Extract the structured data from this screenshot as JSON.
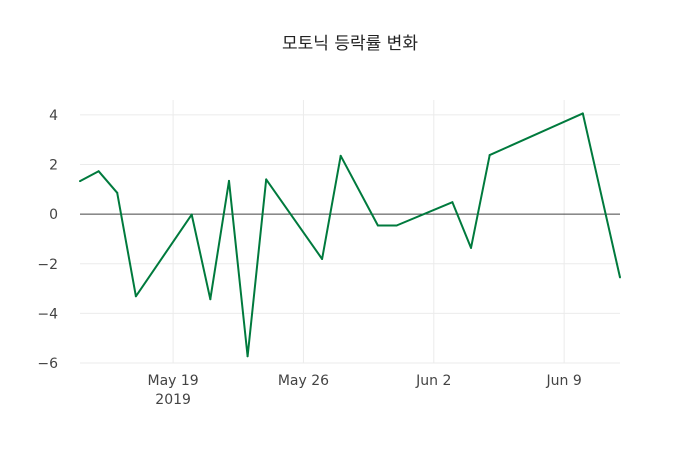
{
  "chart_data": {
    "type": "line",
    "title": "모토닉 등락률 변화",
    "xlabel": "",
    "ylabel": "",
    "x": [
      "2019-05-14",
      "2019-05-15",
      "2019-05-16",
      "2019-05-17",
      "2019-05-20",
      "2019-05-21",
      "2019-05-22",
      "2019-05-23",
      "2019-05-24",
      "2019-05-27",
      "2019-05-28",
      "2019-05-30",
      "2019-05-31",
      "2019-06-03",
      "2019-06-04",
      "2019-06-05",
      "2019-06-10",
      "2019-06-12"
    ],
    "series": [
      {
        "name": "등락률",
        "color": "#007a3d",
        "values": [
          1.33,
          1.73,
          0.86,
          -3.31,
          -0.02,
          -3.43,
          1.34,
          -5.73,
          1.4,
          -1.81,
          2.35,
          -0.46,
          -0.46,
          0.48,
          -1.36,
          2.38,
          4.06,
          -2.55
        ]
      }
    ],
    "xlim": [
      "2019-05-14",
      "2019-06-12"
    ],
    "ylim": [
      -6,
      4.6
    ],
    "grid": true,
    "x_ticks": [
      {
        "date": "2019-05-19",
        "label": "May 19",
        "sublabel": "2019"
      },
      {
        "date": "2019-05-26",
        "label": "May 26"
      },
      {
        "date": "2019-06-02",
        "label": "Jun 2"
      },
      {
        "date": "2019-06-09",
        "label": "Jun 9"
      }
    ],
    "y_ticks": [
      {
        "value": 4,
        "label": "4"
      },
      {
        "value": 2,
        "label": "2"
      },
      {
        "value": 0,
        "label": "0"
      },
      {
        "value": -2,
        "label": "−2"
      },
      {
        "value": -4,
        "label": "−4"
      },
      {
        "value": -6,
        "label": "−6"
      }
    ]
  }
}
